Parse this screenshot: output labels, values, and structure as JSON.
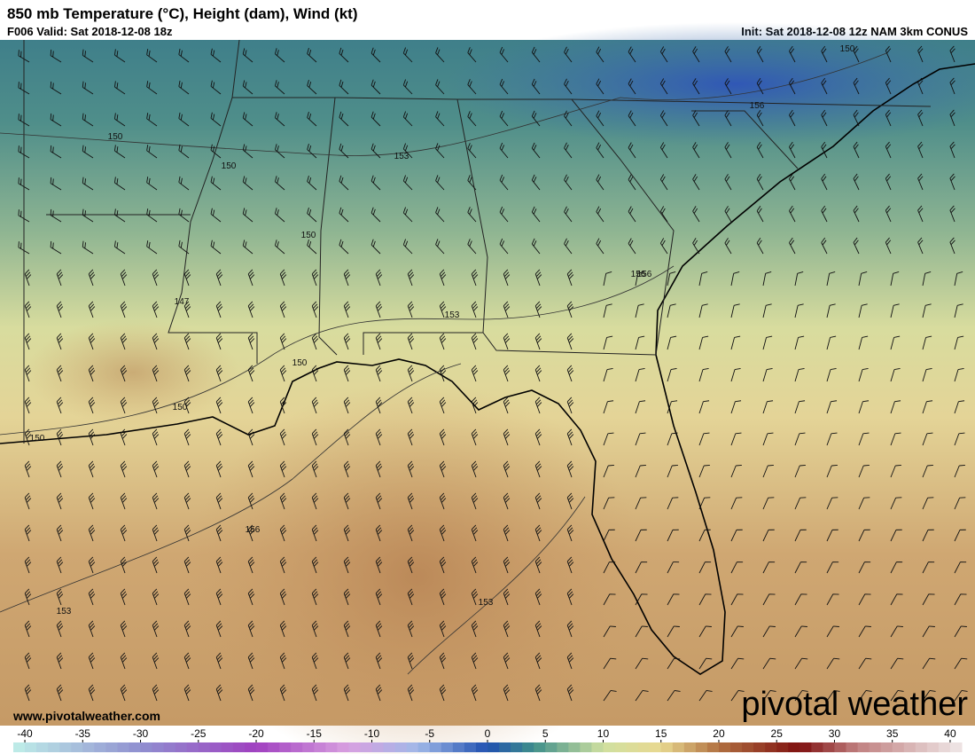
{
  "header": {
    "title": "850 mb Temperature (°C), Height (dam), Wind (kt)",
    "valid": "F006 Valid: Sat 2018-12-08 18z",
    "init": "Init: Sat 2018-12-08 12z NAM 3km CONUS"
  },
  "map": {
    "contour_labels": [
      150,
      150,
      153,
      150,
      147,
      150,
      153,
      150,
      150,
      150,
      156,
      156,
      156,
      153,
      153,
      156
    ]
  },
  "watermark": "www.pivotalweather.com",
  "logo": "pivotal weather",
  "colorbar": {
    "lim": [
      -41,
      41
    ],
    "ticks": [
      -40,
      -35,
      -30,
      -25,
      -20,
      -15,
      -10,
      -5,
      0,
      5,
      10,
      15,
      20,
      25,
      30,
      35,
      40
    ]
  }
}
